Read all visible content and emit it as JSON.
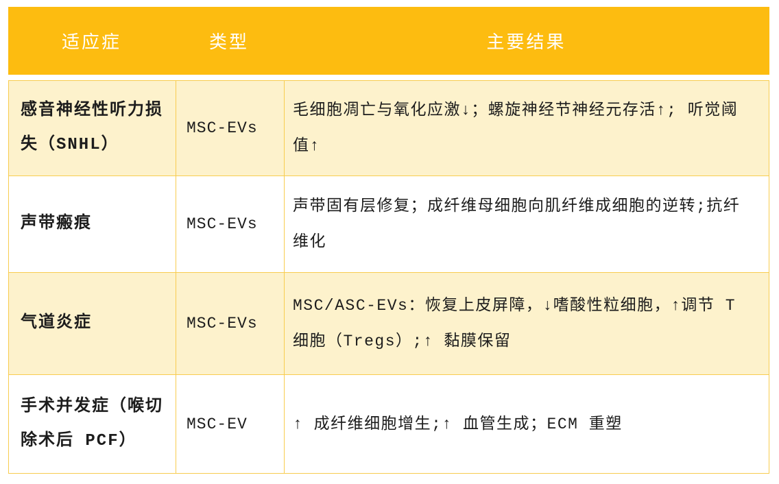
{
  "table": {
    "columns": [
      {
        "label": "适应症"
      },
      {
        "label": "类型"
      },
      {
        "label": "主要结果"
      }
    ],
    "rows": [
      {
        "indication": "感音神经性听力损失（SNHL）",
        "type": "MSC-EVs",
        "result": "毛细胞凋亡与氧化应激↓；螺旋神经节神经元存活↑; 听觉阈值↑"
      },
      {
        "indication": "声带瘢痕",
        "type": "MSC-EVs",
        "result": "声带固有层修复；成纤维母细胞向肌纤维成细胞的逆转;抗纤维化"
      },
      {
        "indication": "气道炎症",
        "type": "MSC-EVs",
        "result": "MSC/ASC-EVs：恢复上皮屏障，↓嗜酸性粒细胞，↑调节 T 细胞（Tregs）;↑ 黏膜保留"
      },
      {
        "indication": "手术并发症（喉切除术后 PCF）",
        "type": "MSC-EV",
        "result": "↑ 成纤维细胞增生;↑ 血管生成；ECM 重塑"
      }
    ],
    "colors": {
      "header_bg": "#FDBC10",
      "header_text": "#FFFFFF",
      "row_bg": "#FFFFFF",
      "row_alt_bg": "#FDF2CC",
      "border": "#F8CC4E",
      "text": "#1C1C1C"
    }
  }
}
